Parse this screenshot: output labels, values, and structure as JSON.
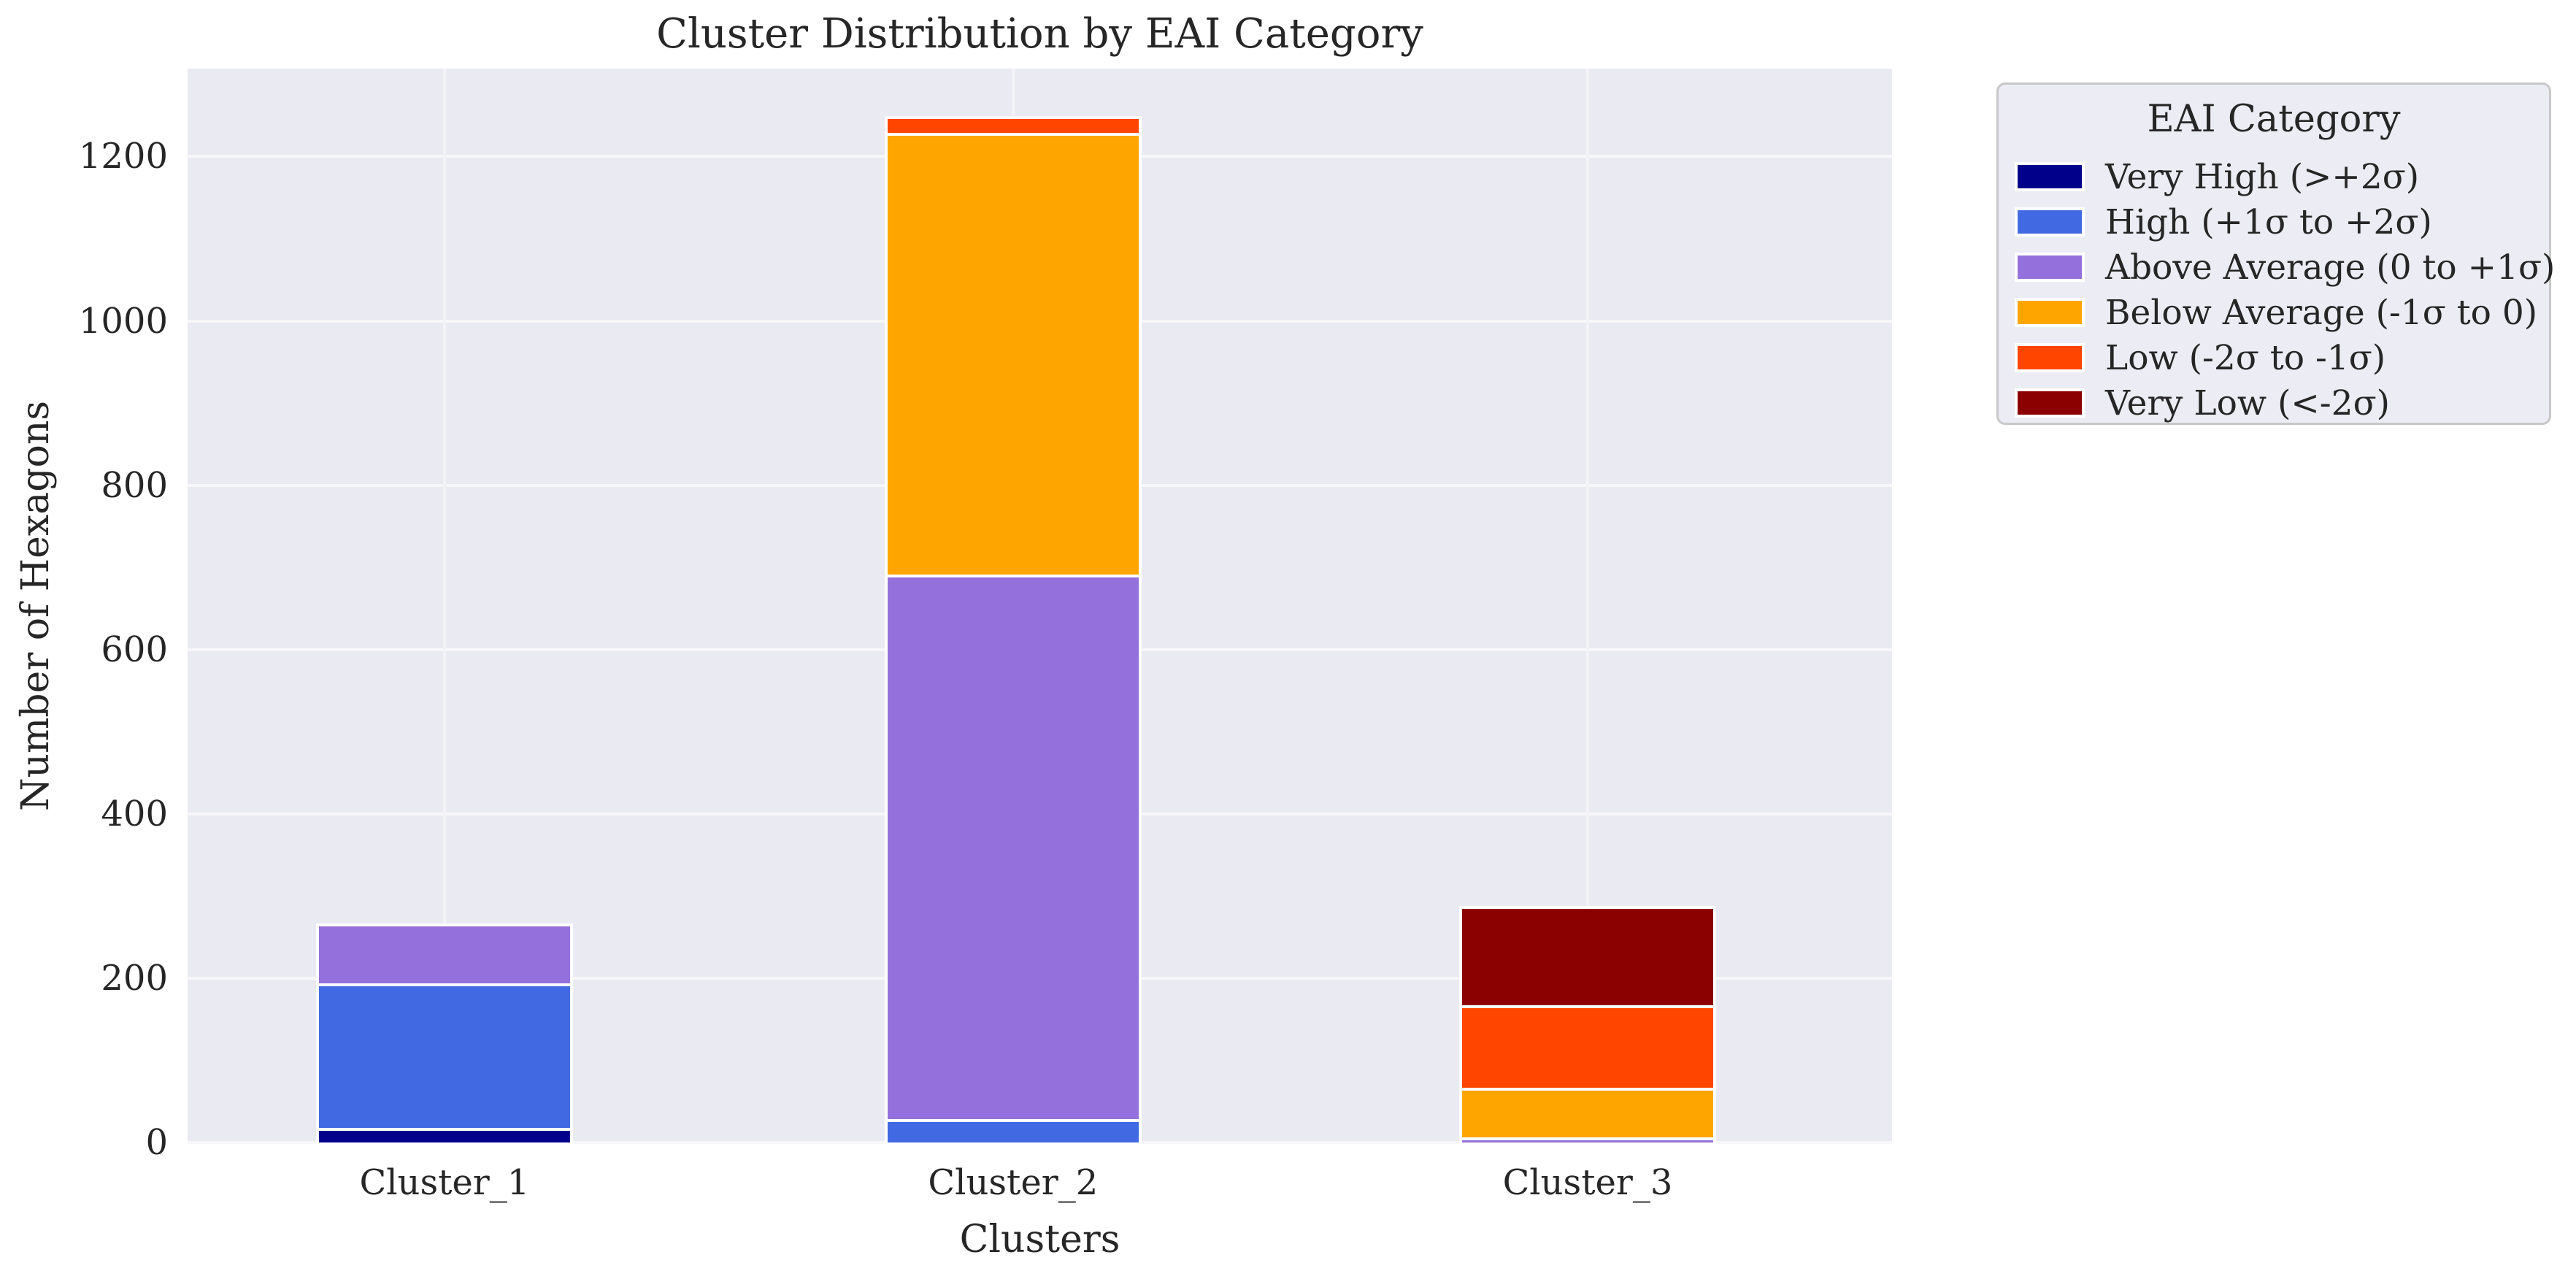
{
  "chart_data": {
    "type": "bar",
    "stacked": true,
    "title": "Cluster Distribution by EAI Category",
    "xlabel": "Clusters",
    "ylabel": "Number of Hexagons",
    "categories": [
      "Cluster_1",
      "Cluster_2",
      "Cluster_3"
    ],
    "series": [
      {
        "name": "Very High (>+2σ)",
        "color": "#00008B",
        "values": [
          18,
          0,
          0
        ]
      },
      {
        "name": "High (+1σ to +2σ)",
        "color": "#4169E1",
        "values": [
          176,
          28,
          0
        ]
      },
      {
        "name": "Above Average (0 to +1σ)",
        "color": "#9370DB",
        "values": [
          69,
          663,
          6
        ]
      },
      {
        "name": "Below Average (-1σ to 0)",
        "color": "#FFA500",
        "values": [
          0,
          538,
          61
        ]
      },
      {
        "name": "Low (-2σ to -1σ)",
        "color": "#FF4500",
        "values": [
          0,
          17,
          100
        ]
      },
      {
        "name": "Very Low (<-2σ)",
        "color": "#8B0000",
        "values": [
          0,
          0,
          117
        ]
      }
    ],
    "totals": [
      263,
      1246,
      284
    ],
    "ylim": [
      0,
      1307
    ],
    "yticks": [
      0,
      200,
      400,
      600,
      800,
      1000,
      1200
    ],
    "grid": true,
    "legend": {
      "title": "EAI Category",
      "position": "outside-right"
    },
    "colors": {
      "plot_background": "#EAEAF2",
      "grid": "#FFFFFF",
      "bar_edge": "#FFFFFF",
      "text": "#262626",
      "legend_background": "#ECECF4",
      "legend_border": "#C8C8C8"
    }
  }
}
